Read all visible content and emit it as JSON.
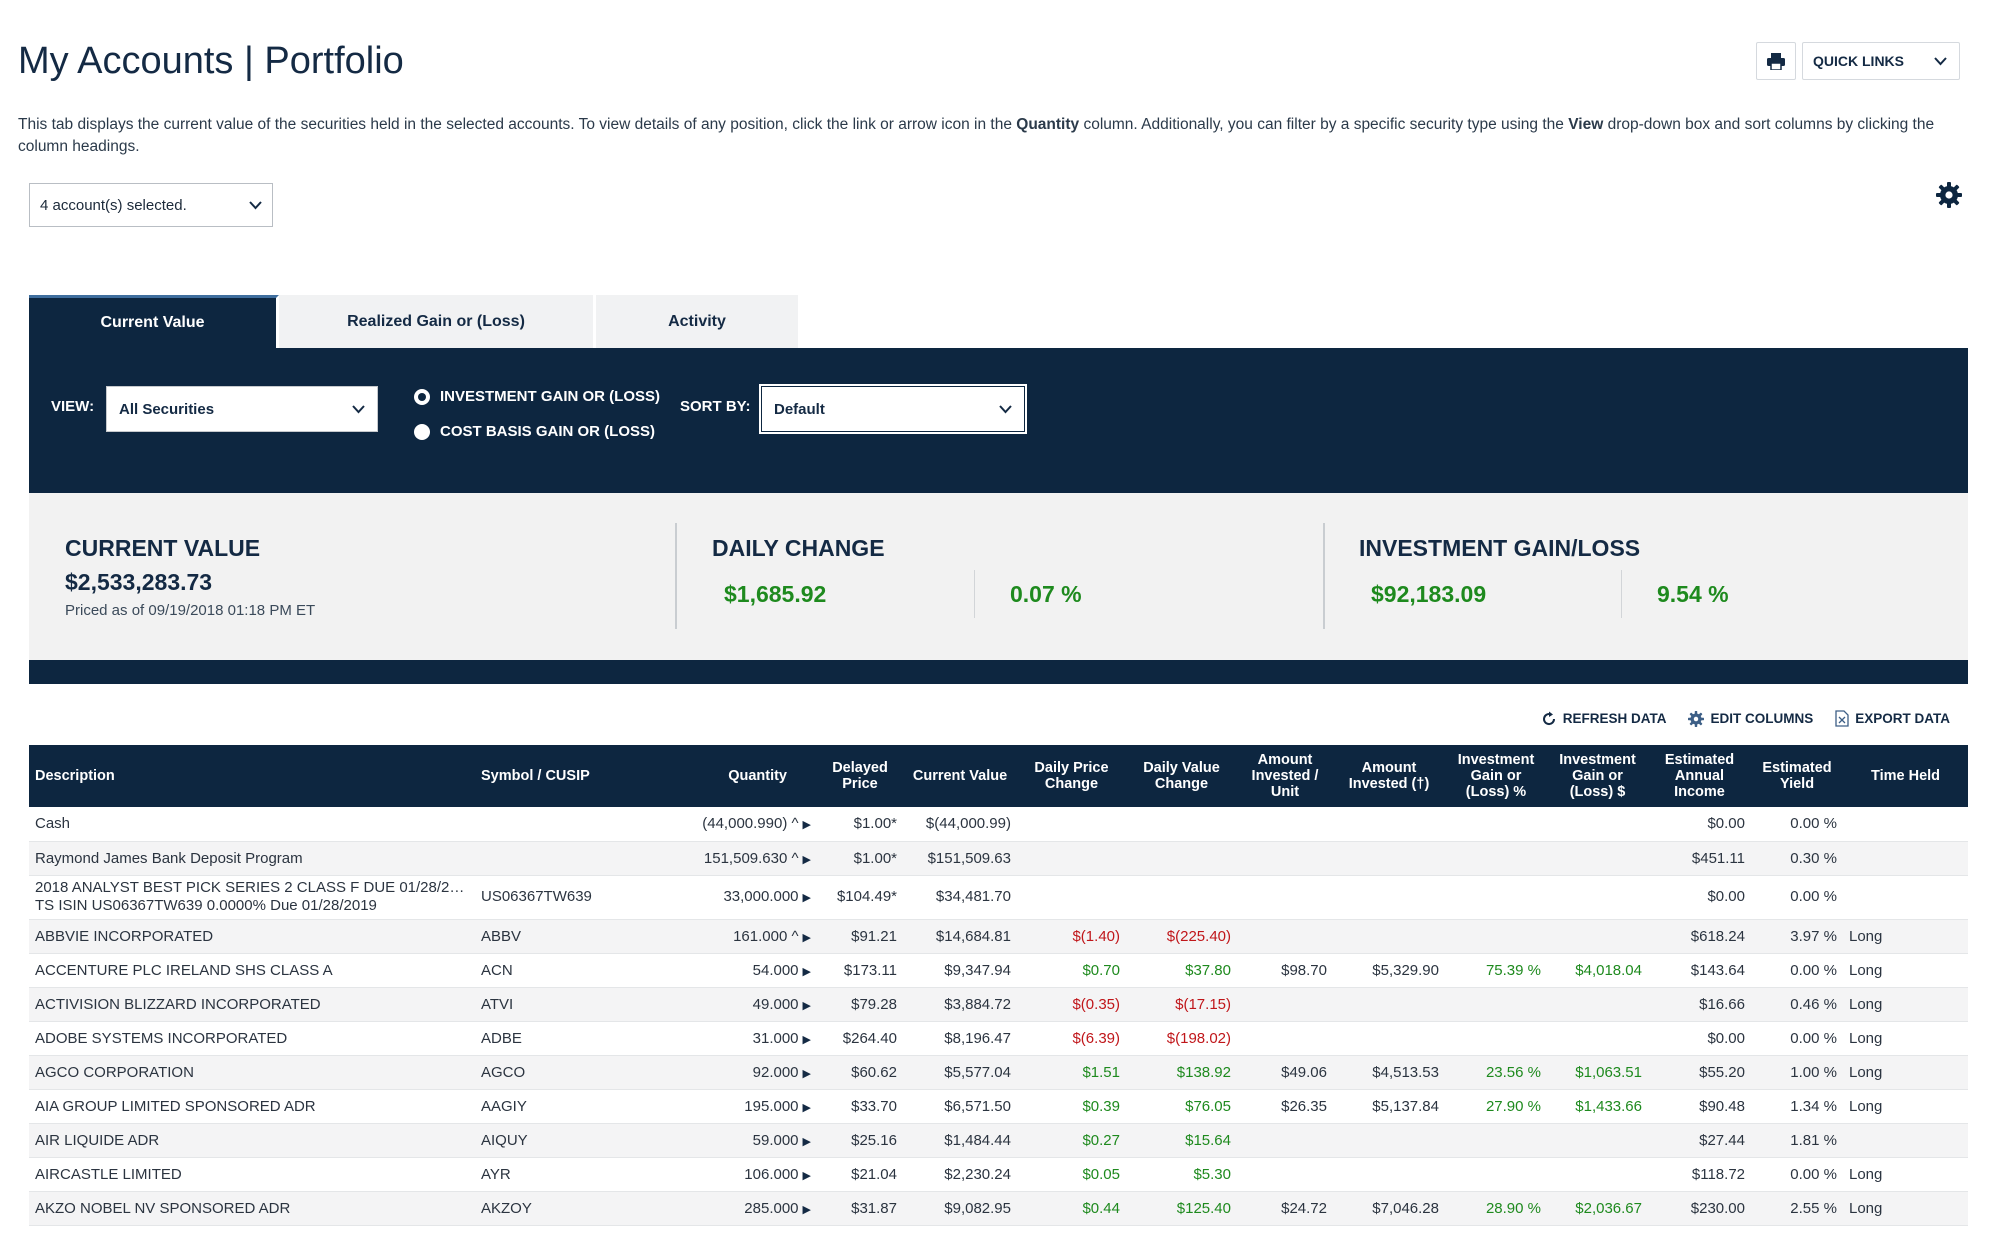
{
  "page": {
    "title": "My Accounts | Portfolio",
    "intro_part1": "This tab displays the current value of the securities held in the selected accounts. To view details of any position, click the link or arrow icon in the ",
    "intro_bold1": "Quantity",
    "intro_part2": " column. Additionally, you can filter by a specific security type using the ",
    "intro_bold2": "View",
    "intro_part3": " drop-down box and sort columns by clicking the column headings."
  },
  "top_actions": {
    "print_icon": "printer-icon",
    "quick_links": "QUICK LINKS"
  },
  "account_select": {
    "value": "4  account(s) selected."
  },
  "tabs": [
    {
      "label": "Current Value",
      "active": true
    },
    {
      "label": "Realized Gain or (Loss)",
      "active": false
    },
    {
      "label": "Activity",
      "active": false
    }
  ],
  "filters": {
    "view_label": "VIEW:",
    "view_value": "All Securities",
    "radio_investment": "INVESTMENT GAIN OR (LOSS)",
    "radio_cost": "COST BASIS GAIN OR (LOSS)",
    "selected_radio": "investment",
    "sort_label": "SORT BY:",
    "sort_value": "Default"
  },
  "summary": {
    "current_value_title": "CURRENT VALUE",
    "current_value": "$2,533,283.73",
    "priced_as_of": "Priced as of 09/19/2018 01:18 PM ET",
    "daily_change_title": "DAILY CHANGE",
    "daily_change_amount": "$1,685.92",
    "daily_change_pct": "0.07 %",
    "gain_title": "INVESTMENT GAIN/LOSS",
    "gain_amount": "$92,183.09",
    "gain_pct": "9.54 %"
  },
  "data_actions": {
    "refresh": "REFRESH DATA",
    "edit": "EDIT COLUMNS",
    "export": "EXPORT DATA"
  },
  "table": {
    "headers": {
      "description": "Description",
      "symbol": "Symbol / CUSIP",
      "quantity": "Quantity",
      "delayed_price": "Delayed Price",
      "current_value": "Current Value",
      "daily_price_change": "Daily Price Change",
      "daily_value_change": "Daily Value Change",
      "amount_invested_unit": "Amount Invested / Unit",
      "amount_invested": "Amount Invested (†)",
      "gain_pct": "Investment Gain or (Loss) %",
      "gain_usd": "Investment Gain or (Loss) $",
      "est_income": "Estimated Annual Income",
      "est_yield": "Estimated Yield",
      "time_held": "Time Held"
    },
    "rows": [
      {
        "desc": "Cash",
        "desc2": "",
        "symbol": "",
        "qty": "(44,000.990) ^",
        "price": "$1.00*",
        "value": "$(44,000.99)",
        "dpc": "",
        "dvc": "",
        "aiu": "",
        "ai": "",
        "gp": "",
        "gd": "",
        "income": "$0.00",
        "yield": "0.00 %",
        "held": "",
        "tone": ""
      },
      {
        "desc": "Raymond James Bank Deposit Program",
        "desc2": "",
        "symbol": "",
        "qty": "151,509.630 ^",
        "price": "$1.00*",
        "value": "$151,509.63",
        "dpc": "",
        "dvc": "",
        "aiu": "",
        "ai": "",
        "gp": "",
        "gd": "",
        "income": "$451.11",
        "yield": "0.30 %",
        "held": "",
        "tone": ""
      },
      {
        "desc": "2018 ANALYST BEST PICK SERIES 2 CLASS F DUE 01/28/201...",
        "desc2": "TS ISIN US06367TW639 0.0000% Due 01/28/2019",
        "symbol": "US06367TW639",
        "qty": "33,000.000",
        "price": "$104.49*",
        "value": "$34,481.70",
        "dpc": "",
        "dvc": "",
        "aiu": "",
        "ai": "",
        "gp": "",
        "gd": "",
        "income": "$0.00",
        "yield": "0.00 %",
        "held": "",
        "tone": ""
      },
      {
        "desc": "ABBVIE INCORPORATED",
        "desc2": "",
        "symbol": "ABBV",
        "qty": "161.000 ^",
        "price": "$91.21",
        "value": "$14,684.81",
        "dpc": "$(1.40)",
        "dvc": "$(225.40)",
        "aiu": "",
        "ai": "",
        "gp": "",
        "gd": "",
        "income": "$618.24",
        "yield": "3.97 %",
        "held": "Long",
        "tone": "red"
      },
      {
        "desc": "ACCENTURE PLC IRELAND SHS CLASS A",
        "desc2": "",
        "symbol": "ACN",
        "qty": "54.000",
        "price": "$173.11",
        "value": "$9,347.94",
        "dpc": "$0.70",
        "dvc": "$37.80",
        "aiu": "$98.70",
        "ai": "$5,329.90",
        "gp": "75.39 %",
        "gd": "$4,018.04",
        "income": "$143.64",
        "yield": "0.00 %",
        "held": "Long",
        "tone": "g"
      },
      {
        "desc": "ACTIVISION BLIZZARD INCORPORATED",
        "desc2": "",
        "symbol": "ATVI",
        "qty": "49.000",
        "price": "$79.28",
        "value": "$3,884.72",
        "dpc": "$(0.35)",
        "dvc": "$(17.15)",
        "aiu": "",
        "ai": "",
        "gp": "",
        "gd": "",
        "income": "$16.66",
        "yield": "0.46 %",
        "held": "Long",
        "tone": "red"
      },
      {
        "desc": "ADOBE SYSTEMS INCORPORATED",
        "desc2": "",
        "symbol": "ADBE",
        "qty": "31.000",
        "price": "$264.40",
        "value": "$8,196.47",
        "dpc": "$(6.39)",
        "dvc": "$(198.02)",
        "aiu": "",
        "ai": "",
        "gp": "",
        "gd": "",
        "income": "$0.00",
        "yield": "0.00 %",
        "held": "Long",
        "tone": "red"
      },
      {
        "desc": "AGCO CORPORATION",
        "desc2": "",
        "symbol": "AGCO",
        "qty": "92.000",
        "price": "$60.62",
        "value": "$5,577.04",
        "dpc": "$1.51",
        "dvc": "$138.92",
        "aiu": "$49.06",
        "ai": "$4,513.53",
        "gp": "23.56 %",
        "gd": "$1,063.51",
        "income": "$55.20",
        "yield": "1.00 %",
        "held": "Long",
        "tone": "g"
      },
      {
        "desc": "AIA GROUP LIMITED SPONSORED ADR",
        "desc2": "",
        "symbol": "AAGIY",
        "qty": "195.000",
        "price": "$33.70",
        "value": "$6,571.50",
        "dpc": "$0.39",
        "dvc": "$76.05",
        "aiu": "$26.35",
        "ai": "$5,137.84",
        "gp": "27.90 %",
        "gd": "$1,433.66",
        "income": "$90.48",
        "yield": "1.34 %",
        "held": "Long",
        "tone": "g"
      },
      {
        "desc": "AIR LIQUIDE ADR",
        "desc2": "",
        "symbol": "AIQUY",
        "qty": "59.000",
        "price": "$25.16",
        "value": "$1,484.44",
        "dpc": "$0.27",
        "dvc": "$15.64",
        "aiu": "",
        "ai": "",
        "gp": "",
        "gd": "",
        "income": "$27.44",
        "yield": "1.81 %",
        "held": "",
        "tone": "g"
      },
      {
        "desc": "AIRCASTLE LIMITED",
        "desc2": "",
        "symbol": "AYR",
        "qty": "106.000",
        "price": "$21.04",
        "value": "$2,230.24",
        "dpc": "$0.05",
        "dvc": "$5.30",
        "aiu": "",
        "ai": "",
        "gp": "",
        "gd": "",
        "income": "$118.72",
        "yield": "0.00 %",
        "held": "Long",
        "tone": "g"
      },
      {
        "desc": "AKZO NOBEL NV SPONSORED ADR",
        "desc2": "",
        "symbol": "AKZOY",
        "qty": "285.000",
        "price": "$31.87",
        "value": "$9,082.95",
        "dpc": "$0.44",
        "dvc": "$125.40",
        "aiu": "$24.72",
        "ai": "$7,046.28",
        "gp": "28.90 %",
        "gd": "$2,036.67",
        "income": "$230.00",
        "yield": "2.55 %",
        "held": "Long",
        "tone": "g"
      }
    ]
  },
  "colors": {
    "navy": "#0d2640",
    "gain": "#1e8a1e",
    "loss": "#c0161a",
    "panel": "#f2f2f2"
  }
}
